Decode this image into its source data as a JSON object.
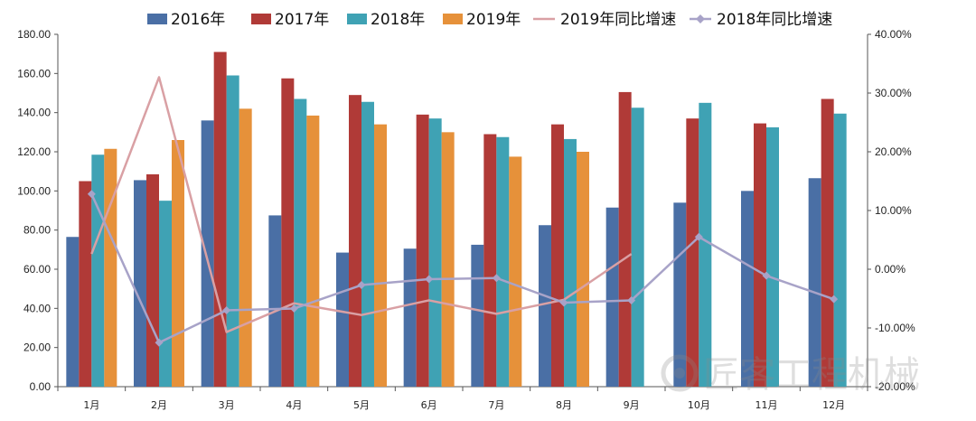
{
  "chart_data": {
    "type": "bar",
    "categories": [
      "1月",
      "2月",
      "3月",
      "4月",
      "5月",
      "6月",
      "7月",
      "8月",
      "9月",
      "10月",
      "11月",
      "12月"
    ],
    "series": [
      {
        "name": "2016年",
        "kind": "bar",
        "axis": "left",
        "color": "#4a6fa5",
        "values": [
          76.5,
          105.5,
          136.0,
          87.5,
          68.5,
          70.5,
          72.5,
          82.5,
          91.5,
          94.0,
          100.0,
          106.5
        ]
      },
      {
        "name": "2017年",
        "kind": "bar",
        "axis": "left",
        "color": "#b03a37",
        "values": [
          105.0,
          108.5,
          171.0,
          157.5,
          149.0,
          139.0,
          129.0,
          134.0,
          150.5,
          137.0,
          134.5,
          147.0
        ]
      },
      {
        "name": "2018年",
        "kind": "bar",
        "axis": "left",
        "color": "#3fa2b4",
        "values": [
          118.5,
          95.0,
          159.0,
          147.0,
          145.5,
          137.0,
          127.5,
          126.5,
          142.5,
          145.0,
          132.5,
          139.5
        ]
      },
      {
        "name": "2019年",
        "kind": "bar",
        "axis": "left",
        "color": "#e6913a",
        "values": [
          121.5,
          126.0,
          142.0,
          138.5,
          134.0,
          130.0,
          117.5,
          120.0,
          null,
          null,
          null,
          null
        ]
      },
      {
        "name": "2019年同比增速",
        "kind": "line",
        "axis": "right",
        "color": "#d9a0a4",
        "marker": "none",
        "values": [
          2.6,
          32.7,
          -10.7,
          -5.8,
          -7.8,
          -5.3,
          -7.6,
          -5.2,
          2.6,
          null,
          null,
          null
        ]
      },
      {
        "name": "2018年同比增速",
        "kind": "line",
        "axis": "right",
        "color": "#a8a3c8",
        "marker": "diamond",
        "values": [
          12.8,
          -12.5,
          -7.0,
          -6.7,
          -2.7,
          -1.7,
          -1.5,
          -5.7,
          -5.3,
          5.5,
          -1.1,
          -5.1
        ]
      }
    ],
    "left_axis": {
      "min": 0,
      "max": 180,
      "step": 20,
      "ticks": [
        "0.00",
        "20.00",
        "40.00",
        "60.00",
        "80.00",
        "100.00",
        "120.00",
        "140.00",
        "160.00",
        "180.00"
      ]
    },
    "right_axis": {
      "min": -20,
      "max": 40,
      "step": 10,
      "ticks": [
        "-20.00%",
        "-10.00%",
        "0.00%",
        "10.00%",
        "20.00%",
        "30.00%",
        "40.00%"
      ]
    },
    "legend_position": "top",
    "title": "",
    "xlabel": "",
    "ylabel": ""
  },
  "watermark": {
    "text": "匠客工程机械"
  }
}
